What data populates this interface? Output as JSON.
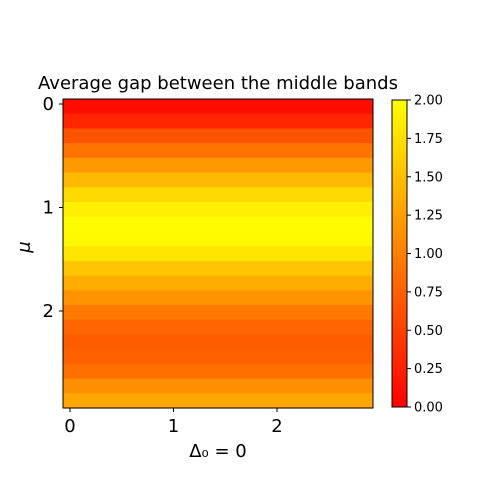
{
  "chart_data": {
    "type": "heatmap",
    "title": "Average gap between the middle bands",
    "xlabel": "Δ₀ = 0",
    "ylabel": "μ",
    "x_ticks": [
      "0",
      "1",
      "2"
    ],
    "y_ticks": [
      "0",
      "1",
      "2"
    ],
    "colormap": "autumn",
    "colormap_colors": [
      "#ff0000",
      "#ffff00"
    ],
    "vmin": 0.0,
    "vmax": 2.0,
    "colorbar_ticks": [
      "0.00",
      "0.25",
      "0.50",
      "0.75",
      "1.00",
      "1.25",
      "1.50",
      "1.75",
      "2.00"
    ],
    "row_values": [
      0.1,
      0.3,
      0.65,
      0.9,
      1.2,
      1.45,
      1.7,
      1.88,
      1.98,
      1.95,
      1.8,
      1.55,
      1.35,
      1.15,
      0.95,
      0.8,
      0.72,
      0.75,
      0.88,
      1.12,
      1.3
    ],
    "columns": 1
  }
}
